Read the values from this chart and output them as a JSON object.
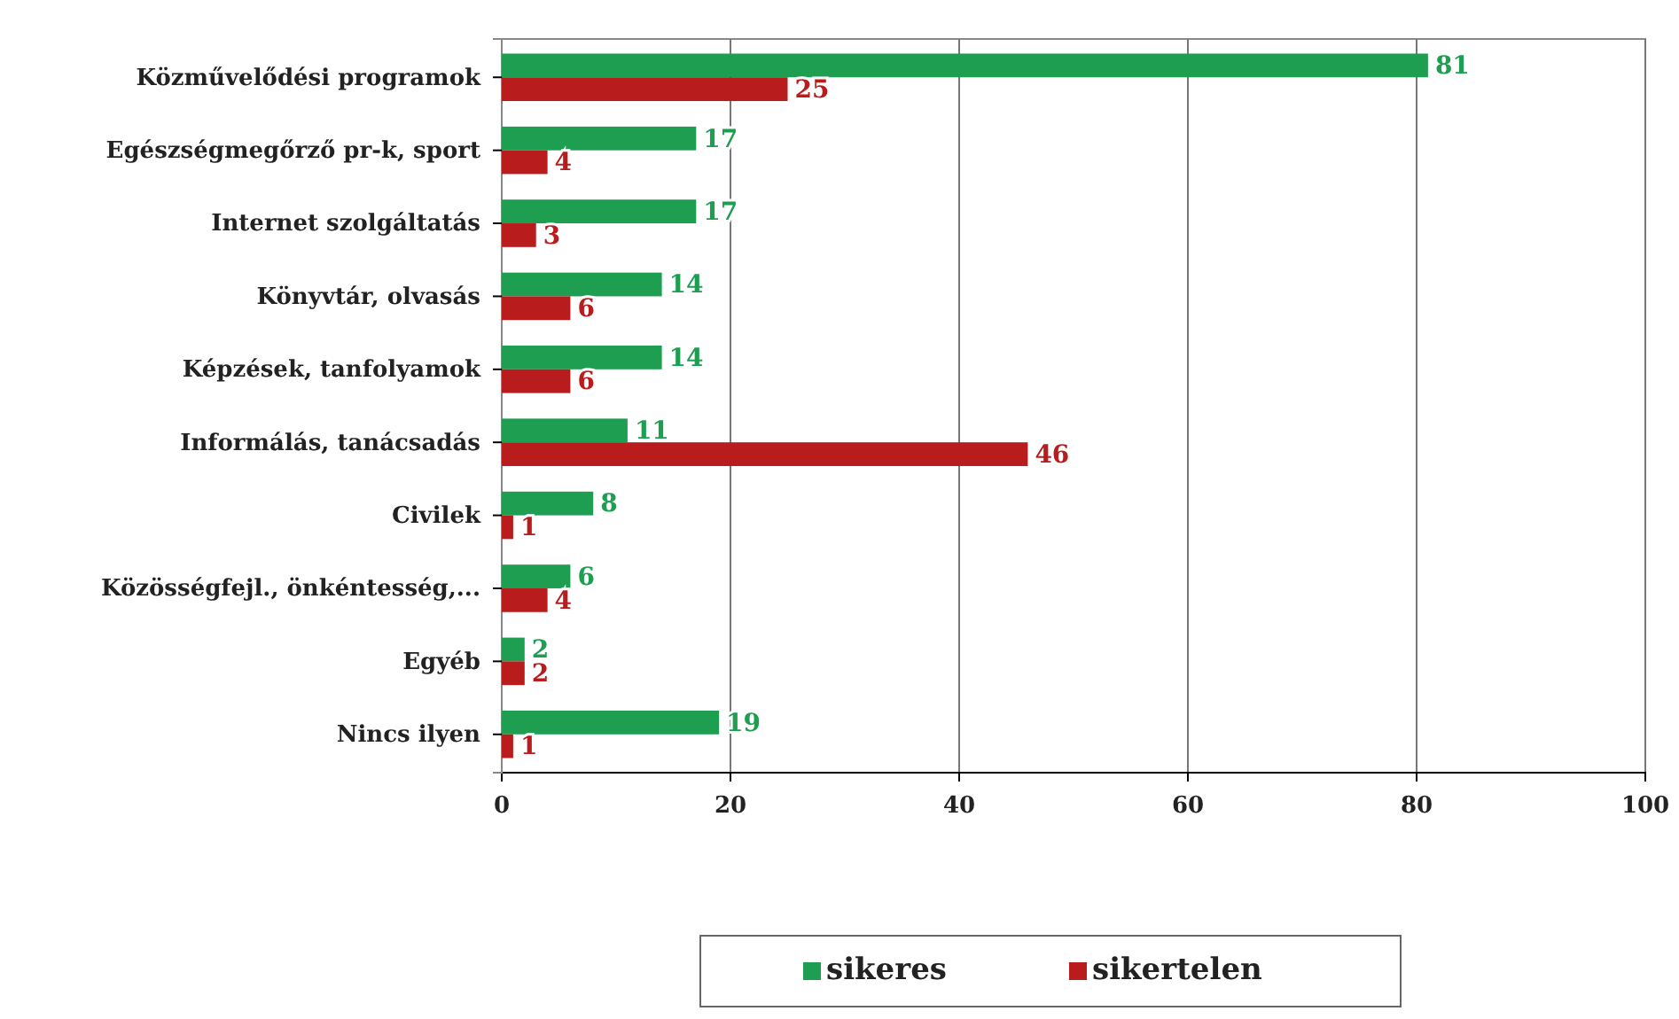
{
  "chart_data": {
    "type": "bar",
    "orientation": "horizontal",
    "categories": [
      "Közművelődési programok",
      "Egészségmegőrző pr-k, sport",
      "Internet szolgáltatás",
      "Könyvtár, olvasás",
      "Képzések, tanfolyamok",
      "Informálás, tanácsadás",
      "Civilek",
      "Közösségfejl., önkéntesség,...",
      "Egyéb",
      "Nincs ilyen"
    ],
    "series": [
      {
        "name": "sikeres",
        "color": "#1e9e50",
        "values": [
          81,
          17,
          17,
          14,
          14,
          11,
          8,
          6,
          2,
          19
        ]
      },
      {
        "name": "sikertelen",
        "color": "#b81c1c",
        "values": [
          25,
          4,
          3,
          6,
          6,
          46,
          1,
          4,
          2,
          1
        ]
      }
    ],
    "xlim": [
      0,
      100
    ],
    "xticks": [
      0,
      20,
      40,
      60,
      80,
      100
    ],
    "grid": "x",
    "legend": "bottom",
    "data_labels": true
  }
}
